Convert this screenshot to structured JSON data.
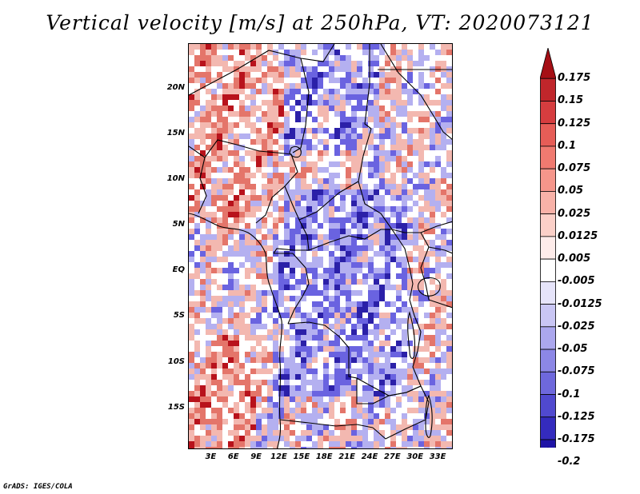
{
  "title": "Vertical velocity [m/s] at 250hPa, VT: 2020073121",
  "credit": "GrADS: IGES/COLA",
  "map": {
    "lat_labels": [
      "20N",
      "15N",
      "10N",
      "5N",
      "EQ",
      "5S",
      "10S",
      "15S"
    ],
    "lat_values": [
      20,
      15,
      10,
      5,
      0,
      -5,
      -10,
      -15
    ],
    "lon_labels": [
      "3E",
      "6E",
      "9E",
      "12E",
      "15E",
      "18E",
      "21E",
      "24E",
      "27E",
      "30E",
      "33E"
    ],
    "lon_values": [
      3,
      6,
      9,
      12,
      15,
      18,
      21,
      24,
      27,
      30,
      33
    ],
    "lon_range": [
      0,
      35
    ],
    "lat_range": [
      -19.5,
      25
    ],
    "field_colors": {
      "strong_negative": "#2b20a8",
      "negative": "#6a63e0",
      "weak_negative": "#b4b0f0",
      "near_zero": "#ffffff",
      "weak_positive": "#f3b8b0",
      "positive": "#e4756a",
      "strong_positive": "#b8121b"
    },
    "boundary_color": "#000000"
  },
  "colorbar": {
    "labels": [
      "0.175",
      "0.15",
      "0.125",
      "0.1",
      "0.075",
      "0.05",
      "0.025",
      "0.0125",
      "0.005",
      "-0.005",
      "-0.0125",
      "-0.025",
      "-0.05",
      "-0.075",
      "-0.1",
      "-0.125",
      "-0.175",
      "-0.2"
    ],
    "colors": [
      "#a50f15",
      "#c0262b",
      "#d63d3f",
      "#e65d57",
      "#f07a70",
      "#f5968b",
      "#f8b2a8",
      "#fbd0c8",
      "#feecea",
      "#ffffff",
      "#e6e4fa",
      "#c9c6f4",
      "#aba7ee",
      "#8c87e6",
      "#6e68dc",
      "#5049cf",
      "#342bbe",
      "#1f14a6",
      "#14089a"
    ]
  }
}
